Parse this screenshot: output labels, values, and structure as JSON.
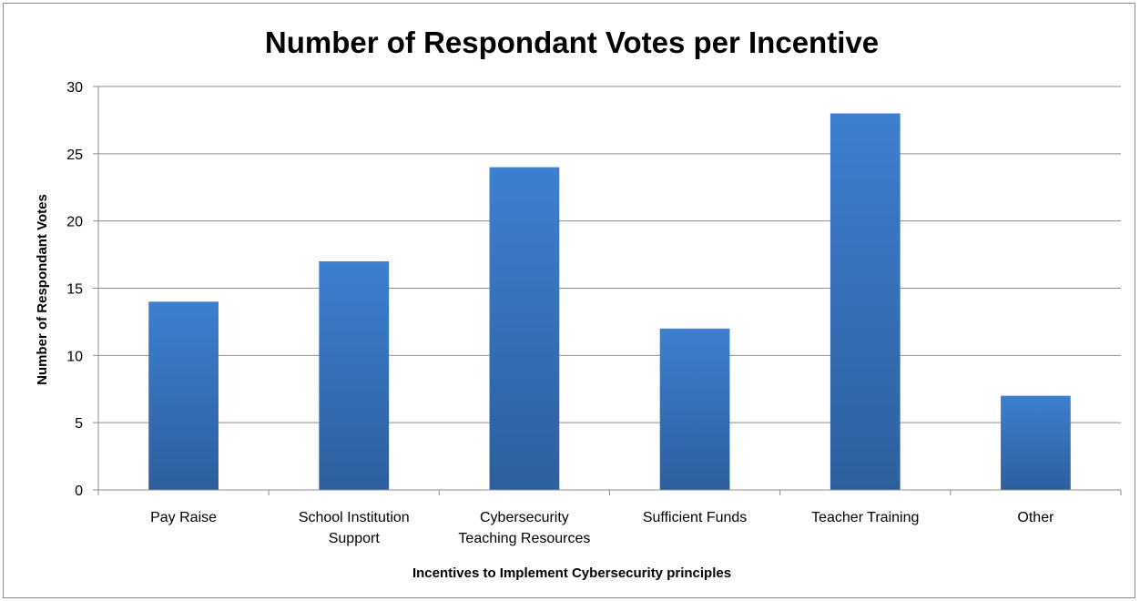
{
  "chart_data": {
    "type": "bar",
    "title": "Number of Respondant Votes per Incentive",
    "xlabel": "Incentives to Implement Cybersecurity principles",
    "ylabel": "Number of Respondant Votes",
    "categories": [
      [
        "Pay Raise"
      ],
      [
        "School Institution",
        "Support"
      ],
      [
        "Cybersecurity",
        "Teaching Resources"
      ],
      [
        "Sufficient Funds"
      ],
      [
        "Teacher Training"
      ],
      [
        "Other"
      ]
    ],
    "values": [
      14,
      17,
      24,
      12,
      28,
      7
    ],
    "ylim": [
      0,
      30
    ],
    "yticks": [
      "0",
      "5",
      "10",
      "15",
      "20",
      "25",
      "30"
    ],
    "grid": true,
    "legend": "none",
    "colors": {
      "bar_top": "#3d7fd0",
      "bar_bottom": "#2d5f9e",
      "grid": "#8c8c8c"
    }
  }
}
